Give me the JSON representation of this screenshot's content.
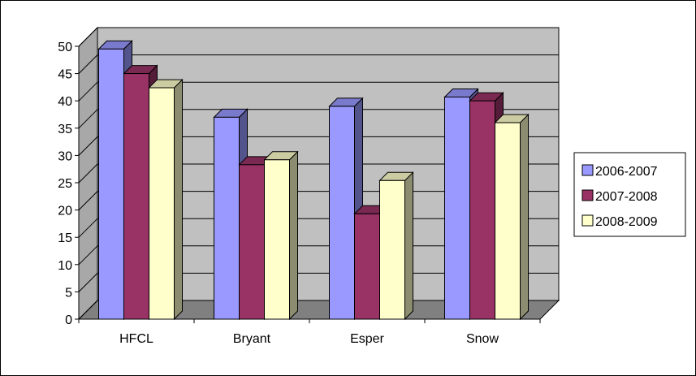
{
  "chart_data": {
    "type": "bar",
    "style": "3d-clustered-column",
    "title": "",
    "xlabel": "",
    "ylabel": "",
    "categories": [
      "HFCL",
      "Bryant",
      "Esper",
      "Snow"
    ],
    "series": [
      {
        "name": "2006-2007",
        "values": [
          49.5,
          37,
          39,
          40.7
        ],
        "color": "#9999ff"
      },
      {
        "name": "2007-2008",
        "values": [
          45,
          28.3,
          19.3,
          40
        ],
        "color": "#993366"
      },
      {
        "name": "2008-2009",
        "values": [
          42.4,
          29.2,
          25.4,
          36
        ],
        "color": "#ffffcc"
      }
    ],
    "ylim": [
      0,
      50
    ],
    "yticks": [
      "0",
      "5",
      "10",
      "15",
      "20",
      "25",
      "30",
      "35",
      "40",
      "45",
      "50"
    ],
    "grid": true,
    "wall_color": "#c0c0c0",
    "legend_position": "right"
  }
}
